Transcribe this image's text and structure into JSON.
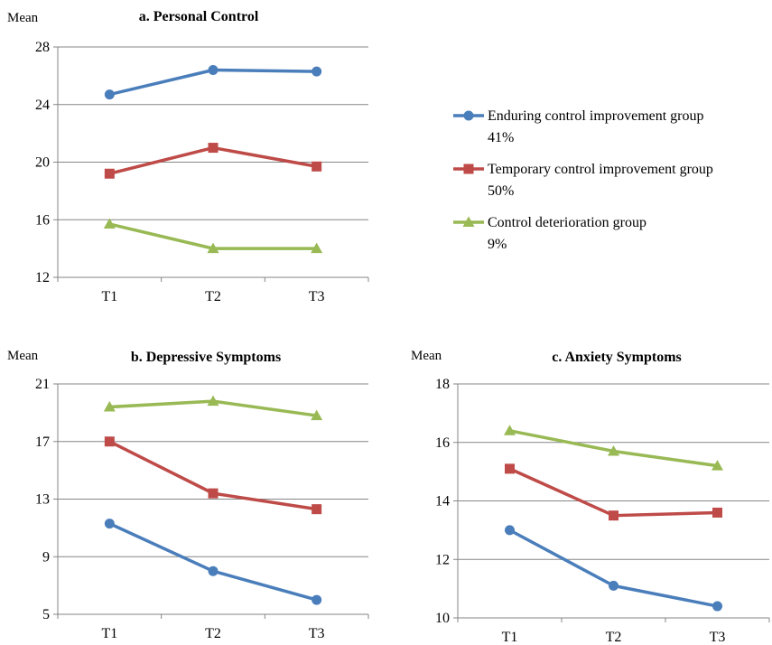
{
  "colors": {
    "enduring": "#4a7ebb",
    "temporary": "#be4b48",
    "deterioration": "#98b954",
    "grid": "#868686",
    "axis": "#868686"
  },
  "legend": [
    {
      "name": "Enduring control  improvement group",
      "pct": "41%",
      "marker": "circle",
      "color_key": "enduring"
    },
    {
      "name": "Temporary control improvement group",
      "pct": "50%",
      "marker": "square",
      "color_key": "temporary"
    },
    {
      "name": "Control deterioration group",
      "pct": "9%",
      "marker": "triangle",
      "color_key": "deterioration"
    }
  ],
  "chart_data": [
    {
      "type": "line",
      "title": "a. Personal Control",
      "ylabel": "Mean",
      "xlabel": "",
      "categories": [
        "T1",
        "T2",
        "T3"
      ],
      "ylim": [
        12,
        28
      ],
      "yticks": [
        12,
        16,
        20,
        24,
        28
      ],
      "grid": true,
      "legend_position": "right",
      "series": [
        {
          "name": "Enduring control  improvement group",
          "values": [
            24.7,
            26.4,
            26.3
          ]
        },
        {
          "name": "Temporary control improvement group",
          "values": [
            19.2,
            21.0,
            19.7
          ]
        },
        {
          "name": "Control deterioration group",
          "values": [
            15.7,
            14.0,
            14.0
          ]
        }
      ]
    },
    {
      "type": "line",
      "title": "b. Depressive Symptoms",
      "ylabel": "Mean",
      "xlabel": "",
      "categories": [
        "T1",
        "T2",
        "T3"
      ],
      "ylim": [
        5,
        21
      ],
      "yticks": [
        5,
        9,
        13,
        17,
        21
      ],
      "grid": true,
      "series": [
        {
          "name": "Enduring control  improvement group",
          "values": [
            11.3,
            8.0,
            6.0
          ]
        },
        {
          "name": "Temporary control improvement group",
          "values": [
            17.0,
            13.4,
            12.3
          ]
        },
        {
          "name": "Control deterioration group",
          "values": [
            19.4,
            19.8,
            18.8
          ]
        }
      ]
    },
    {
      "type": "line",
      "title": "c. Anxiety Symptoms",
      "ylabel": "Mean",
      "xlabel": "",
      "categories": [
        "T1",
        "T2",
        "T3"
      ],
      "ylim": [
        10,
        18
      ],
      "yticks": [
        10,
        12,
        14,
        16,
        18
      ],
      "grid": true,
      "series": [
        {
          "name": "Enduring control  improvement group",
          "values": [
            13.0,
            11.1,
            10.4
          ]
        },
        {
          "name": "Temporary control improvement group",
          "values": [
            15.1,
            13.5,
            13.6
          ]
        },
        {
          "name": "Control deterioration group",
          "values": [
            16.4,
            15.7,
            15.2
          ]
        }
      ]
    }
  ]
}
